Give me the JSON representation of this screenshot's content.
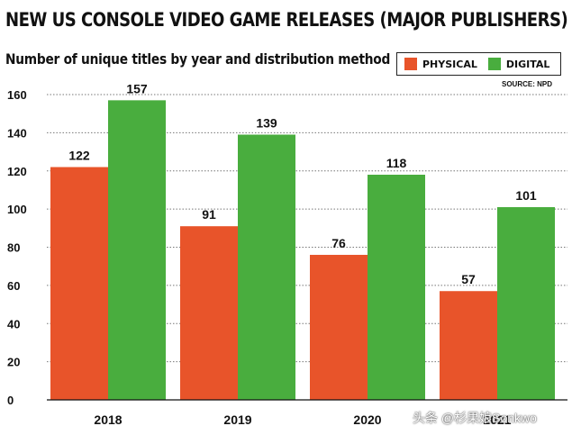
{
  "title": "NEW US CONSOLE VIDEO GAME RELEASES (MAJOR PUBLISHERS)",
  "subtitle": "Number of unique titles by year and distribution method",
  "source": "SOURCE: NPD",
  "watermark": "头条 @杉果娘Sonkwo",
  "colors": {
    "physical": "#e8542a",
    "digital": "#49ad3e"
  },
  "chart_data": {
    "type": "bar",
    "title": "NEW US CONSOLE VIDEO GAME RELEASES (MAJOR PUBLISHERS)",
    "subtitle": "Number of unique titles by year and distribution method",
    "categories": [
      "2018",
      "2019",
      "2020",
      "2021"
    ],
    "series": [
      {
        "name": "PHYSICAL",
        "values": [
          122,
          91,
          76,
          57
        ]
      },
      {
        "name": "DIGITAL",
        "values": [
          157,
          139,
          118,
          101
        ]
      }
    ],
    "xlabel": "",
    "ylabel": "",
    "ylim": [
      0,
      160
    ],
    "yticks": [
      0,
      20,
      40,
      60,
      80,
      100,
      120,
      140,
      160
    ],
    "grid": true,
    "legend": "top-right"
  }
}
